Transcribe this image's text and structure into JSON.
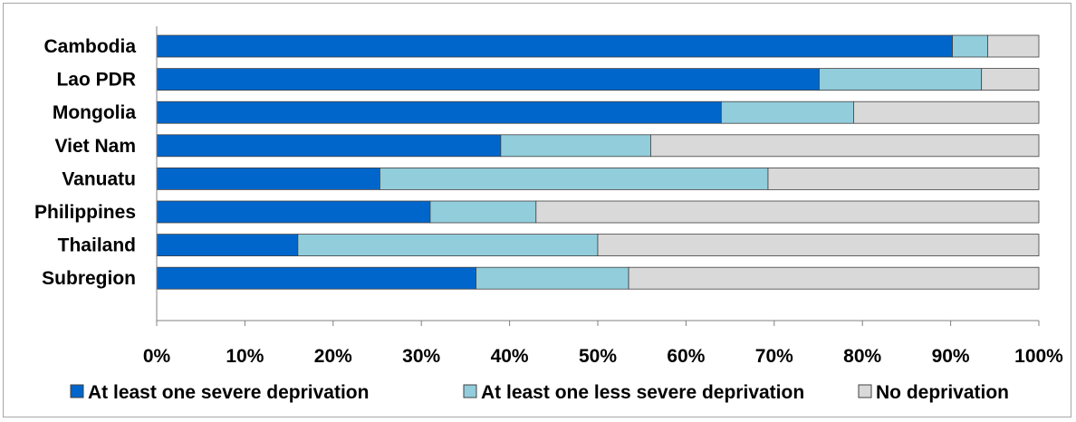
{
  "chart_data": {
    "type": "bar",
    "orientation": "horizontal",
    "stacked": true,
    "categories": [
      "Cambodia",
      "Lao PDR",
      "Mongolia",
      "Viet Nam",
      "Vanuatu",
      "Philippines",
      "Thailand",
      "Subregion"
    ],
    "series": [
      {
        "name": "At least one severe deprivation",
        "color": "#0066cc",
        "values": [
          90.2,
          75.1,
          64.0,
          39.0,
          25.3,
          31.0,
          16.0,
          36.2
        ]
      },
      {
        "name": "At least one less severe deprivation",
        "color": "#92cddc",
        "values": [
          4.0,
          18.4,
          15.0,
          17.0,
          44.0,
          12.0,
          34.0,
          17.3
        ]
      },
      {
        "name": "No deprivation",
        "color": "#d9d9d9",
        "values": [
          5.8,
          6.5,
          21.0,
          44.0,
          30.7,
          57.0,
          50.0,
          46.5
        ]
      }
    ],
    "x_ticks": [
      "0%",
      "10%",
      "20%",
      "30%",
      "40%",
      "50%",
      "60%",
      "70%",
      "80%",
      "90%",
      "100%"
    ],
    "xlim": [
      0,
      100
    ],
    "grid": false,
    "legend_position": "bottom"
  }
}
